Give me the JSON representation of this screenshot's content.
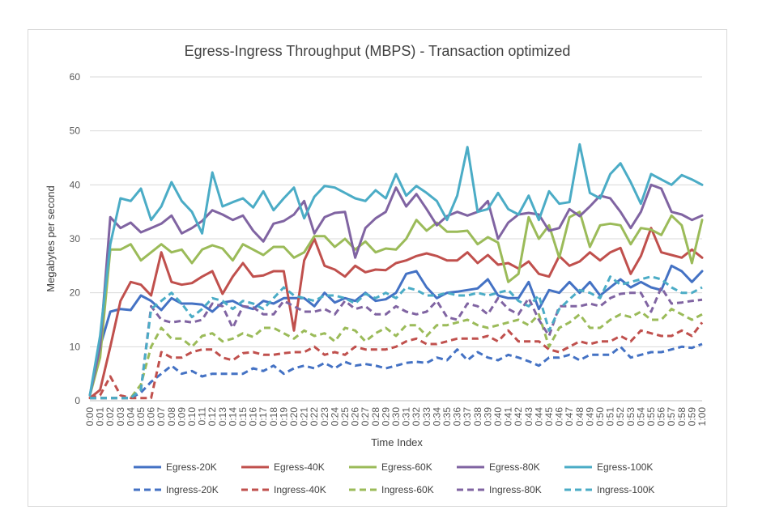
{
  "chart_data": {
    "type": "line",
    "title": "Egress-Ingress Throughput (MBPS) - Transaction optimized",
    "xlabel": "Time Index",
    "ylabel": "Megabytes per second",
    "ylim": [
      0,
      60
    ],
    "yticks": [
      0,
      10,
      20,
      30,
      40,
      50,
      60
    ],
    "grid": true,
    "legend_position": "bottom",
    "categories": [
      "0:00",
      "0:01",
      "0:02",
      "0:03",
      "0:04",
      "0:05",
      "0:06",
      "0:07",
      "0:08",
      "0:09",
      "0:10",
      "0:11",
      "0:12",
      "0:13",
      "0:14",
      "0:15",
      "0:16",
      "0:17",
      "0:18",
      "0:19",
      "0:20",
      "0:21",
      "0:22",
      "0:23",
      "0:24",
      "0:25",
      "0:26",
      "0:27",
      "0:28",
      "0:29",
      "0:30",
      "0:31",
      "0:32",
      "0:33",
      "0:34",
      "0:35",
      "0:36",
      "0:37",
      "0:38",
      "0:39",
      "0:40",
      "0:41",
      "0:42",
      "0:43",
      "0:44",
      "0:45",
      "0:46",
      "0:47",
      "0:48",
      "0:49",
      "0:50",
      "0:51",
      "0:52",
      "0:53",
      "0:54",
      "0:55",
      "0:56",
      "0:57",
      "0:58",
      "0:59",
      "1:00"
    ],
    "series": [
      {
        "name": "Egress-20K",
        "color": "#4472c4",
        "dash": "solid",
        "values": [
          1,
          10,
          16.5,
          17,
          16.8,
          19.5,
          18.5,
          16.8,
          19,
          18,
          18,
          17.8,
          16.5,
          18.2,
          18.5,
          17.5,
          17,
          18.5,
          18,
          19,
          19,
          19,
          17.5,
          20,
          18.2,
          19,
          18.5,
          20,
          18.5,
          18.8,
          20,
          23.5,
          24,
          21,
          19,
          20,
          20.2,
          20.5,
          20.8,
          22.5,
          19.5,
          19,
          19,
          22,
          17,
          20.5,
          20,
          22,
          20,
          22,
          19.5,
          21,
          22.5,
          21,
          22,
          21,
          20.5,
          25,
          24,
          22,
          24
        ]
      },
      {
        "name": "Egress-40K",
        "color": "#c0504d",
        "dash": "solid",
        "values": [
          0.5,
          2,
          10,
          18.5,
          22,
          21.5,
          19.5,
          27.5,
          22,
          21.5,
          21.8,
          23,
          24,
          19.8,
          23,
          25.5,
          23,
          23.2,
          24,
          24,
          13,
          26,
          30,
          25,
          24.3,
          23,
          25,
          23.8,
          24.3,
          24.2,
          25.5,
          26,
          26.8,
          27.3,
          26.8,
          26,
          26,
          27.5,
          25.5,
          27,
          25.2,
          25.5,
          24.5,
          25.8,
          23.5,
          23,
          26.8,
          25,
          25.8,
          27.5,
          26,
          27.5,
          28.3,
          23.5,
          26.8,
          32,
          27.5,
          27,
          26.5,
          28,
          26.5
        ]
      },
      {
        "name": "Egress-60K",
        "color": "#9bbb59",
        "dash": "solid",
        "values": [
          1,
          8,
          28,
          28,
          29,
          26,
          27.5,
          29,
          27.5,
          28,
          25.5,
          28,
          28.8,
          28.2,
          26,
          29,
          28,
          27,
          28.5,
          28.5,
          26.5,
          27.5,
          30.5,
          30.5,
          28.5,
          30,
          28,
          29.5,
          27.5,
          28.2,
          28,
          30,
          33.5,
          31.5,
          33,
          31.3,
          31.3,
          31.5,
          29,
          30.3,
          29.3,
          22,
          23.5,
          34,
          30,
          32.5,
          26.5,
          34,
          35,
          28.5,
          32.5,
          32.8,
          32.5,
          29,
          32,
          31.7,
          30.7,
          34.3,
          32.5,
          25.5,
          33.5
        ]
      },
      {
        "name": "Egress-80K",
        "color": "#8064a2",
        "dash": "solid",
        "values": [
          1,
          10,
          34,
          32,
          33,
          31.2,
          32,
          32.8,
          34.3,
          31,
          32,
          33.3,
          35.3,
          34.5,
          33.5,
          34.3,
          31.5,
          29.5,
          32.8,
          33.3,
          34.5,
          37,
          31,
          34,
          34.8,
          35,
          26.5,
          32,
          33.8,
          35,
          39.5,
          36,
          38.3,
          35.5,
          32.5,
          34.2,
          35,
          34.3,
          35,
          37,
          30,
          33,
          34.5,
          34.8,
          34.5,
          31.5,
          32,
          35.5,
          34.2,
          36,
          38,
          37.5,
          35,
          32,
          35,
          40,
          39.3,
          35,
          34.5,
          33.5,
          34.3
        ]
      },
      {
        "name": "Egress-100K",
        "color": "#4bacc6",
        "dash": "solid",
        "values": [
          1,
          12,
          29,
          37.5,
          37,
          39.3,
          33.5,
          36,
          40.5,
          37,
          35,
          31,
          42.3,
          36,
          36.8,
          37.5,
          35.8,
          38.8,
          35.3,
          37.5,
          39.5,
          33.8,
          37.8,
          39.8,
          39.5,
          38.5,
          37.5,
          37,
          39,
          37.5,
          42,
          38,
          39.8,
          38.5,
          37,
          33.5,
          38,
          47,
          35,
          35.5,
          38.5,
          35.5,
          34.5,
          38,
          33.5,
          38.8,
          36.5,
          36.8,
          47.5,
          38.5,
          37.5,
          42,
          44,
          40.5,
          36.5,
          42,
          41,
          40,
          41.8,
          41,
          40
        ]
      },
      {
        "name": "Ingress-20K",
        "color": "#4472c4",
        "dash": "dashed",
        "values": [
          0.5,
          0.5,
          0.5,
          0.5,
          0.5,
          1.5,
          3.5,
          5,
          6.5,
          5,
          5.5,
          4.5,
          5,
          5,
          5,
          5,
          6,
          5.5,
          6.5,
          5,
          6,
          6.5,
          6,
          7,
          6,
          7.2,
          6.5,
          6.8,
          6.5,
          6,
          6.5,
          7,
          7.2,
          7,
          8,
          7.5,
          9.5,
          7.5,
          9,
          8,
          7.5,
          8.5,
          8,
          7.3,
          6.5,
          8,
          8,
          8.5,
          7.5,
          8.5,
          8.5,
          8.5,
          10,
          8,
          8.5,
          9,
          9,
          9.5,
          10,
          9.8,
          10.5
        ]
      },
      {
        "name": "Ingress-40K",
        "color": "#c0504d",
        "dash": "dashed",
        "values": [
          0.5,
          1,
          4.5,
          1,
          0.5,
          0.5,
          0.5,
          9,
          8,
          8,
          9,
          9.5,
          9.5,
          8,
          7.5,
          8.8,
          9,
          8.5,
          8.5,
          8.8,
          9,
          9,
          10,
          8.5,
          9,
          8.5,
          10,
          9.5,
          9.5,
          9.5,
          10,
          11,
          11.5,
          10.5,
          10.5,
          11,
          11.5,
          11.5,
          11.5,
          12,
          11,
          13,
          11,
          11,
          11,
          9.5,
          9,
          10,
          11,
          10.5,
          11,
          11,
          12,
          11,
          13,
          12.5,
          12,
          12,
          13,
          12,
          14.5
        ]
      },
      {
        "name": "Ingress-60K",
        "color": "#9bbb59",
        "dash": "dashed",
        "values": [
          0.5,
          0.5,
          0.5,
          0.5,
          0.5,
          3,
          10,
          13.5,
          11.5,
          11.5,
          10,
          12,
          12.5,
          11,
          11.5,
          12.5,
          11.8,
          13.5,
          13.5,
          12.5,
          11.5,
          13,
          12,
          12.5,
          11,
          13.5,
          13,
          11,
          12.5,
          13.5,
          12,
          14,
          14,
          12,
          14,
          14,
          14.5,
          15,
          14,
          13.5,
          14,
          14.5,
          15,
          14,
          16,
          10,
          13.5,
          14.5,
          16,
          13.5,
          13.5,
          15,
          16,
          15.5,
          16.5,
          15,
          15,
          17,
          16,
          15,
          16
        ]
      },
      {
        "name": "Ingress-80K",
        "color": "#8064a2",
        "dash": "dashed",
        "values": [
          0.5,
          0.5,
          0.5,
          0.5,
          0.5,
          2,
          17.5,
          15,
          14.5,
          14.8,
          14.5,
          15,
          18,
          17.5,
          13.5,
          17.5,
          17.3,
          16,
          16,
          18.5,
          17.5,
          16.5,
          16.5,
          17,
          16,
          18.5,
          17,
          17.5,
          16,
          16,
          17.5,
          16.5,
          16,
          16.5,
          18.5,
          15.5,
          15,
          18,
          17.5,
          16,
          19,
          17,
          16,
          19,
          15,
          12,
          17.5,
          17.5,
          17.5,
          18,
          17.5,
          19,
          19.8,
          20,
          20,
          16.5,
          21,
          18,
          18.2,
          18.5,
          18.7
        ]
      },
      {
        "name": "Ingress-100K",
        "color": "#4bacc6",
        "dash": "dashed",
        "values": [
          0.5,
          0.5,
          0.5,
          0.5,
          0.5,
          2,
          17,
          18.5,
          20,
          18,
          15.5,
          17,
          19,
          18.5,
          17,
          18.5,
          18,
          17,
          19,
          21,
          19.5,
          19,
          18.5,
          19.5,
          19.5,
          19,
          18,
          19.8,
          19,
          20,
          19,
          21,
          20.5,
          19.5,
          19.5,
          20,
          19.5,
          19.5,
          20,
          19.5,
          20,
          20.5,
          18.5,
          17.5,
          19.5,
          13,
          17,
          18.8,
          20.5,
          20,
          19,
          23,
          21.5,
          22,
          22.5,
          23,
          22.5,
          21,
          20,
          20,
          21
        ]
      }
    ]
  }
}
